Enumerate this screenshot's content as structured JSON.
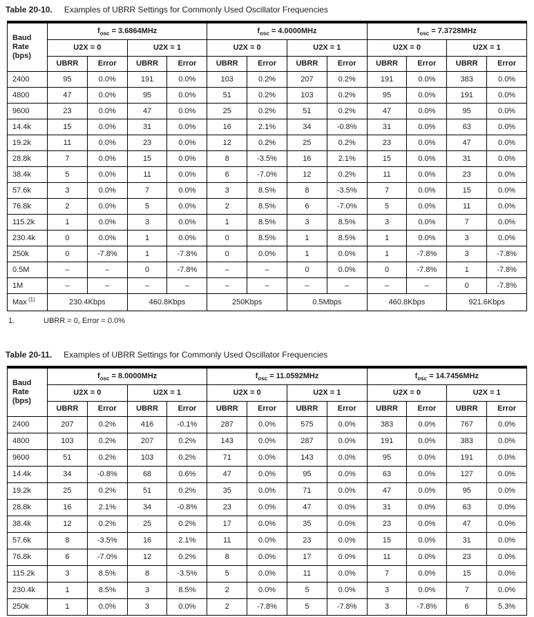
{
  "tables": [
    {
      "title_label": "Table 20-10.",
      "title_text": "Examples of UBRR Settings for Commonly Used Oscillator Frequencies",
      "baud_header": "Baud\nRate\n(bps)",
      "osc_groups": [
        {
          "prefix": "f",
          "subscript": "osc",
          "suffix": " = 3.6864MHz"
        },
        {
          "prefix": "f",
          "subscript": "osc",
          "suffix": " = 4.0000MHz"
        },
        {
          "prefix": "f",
          "subscript": "osc",
          "suffix": " = 7.3728MHz"
        }
      ],
      "u2x_labels": [
        "U2X = 0",
        "U2X = 1"
      ],
      "col_headers": [
        "UBRR",
        "Error"
      ],
      "rows": [
        {
          "baud": "2400",
          "cells": [
            "95",
            "0.0%",
            "191",
            "0.0%",
            "103",
            "0.2%",
            "207",
            "0.2%",
            "191",
            "0.0%",
            "383",
            "0.0%"
          ]
        },
        {
          "baud": "4800",
          "cells": [
            "47",
            "0.0%",
            "95",
            "0.0%",
            "51",
            "0.2%",
            "103",
            "0.2%",
            "95",
            "0.0%",
            "191",
            "0.0%"
          ]
        },
        {
          "baud": "9600",
          "cells": [
            "23",
            "0.0%",
            "47",
            "0.0%",
            "25",
            "0.2%",
            "51",
            "0.2%",
            "47",
            "0.0%",
            "95",
            "0.0%"
          ]
        },
        {
          "baud": "14.4k",
          "cells": [
            "15",
            "0.0%",
            "31",
            "0.0%",
            "16",
            "2.1%",
            "34",
            "-0.8%",
            "31",
            "0.0%",
            "63",
            "0.0%"
          ]
        },
        {
          "baud": "19.2k",
          "cells": [
            "11",
            "0.0%",
            "23",
            "0.0%",
            "12",
            "0.2%",
            "25",
            "0.2%",
            "23",
            "0.0%",
            "47",
            "0.0%"
          ]
        },
        {
          "baud": "28.8k",
          "cells": [
            "7",
            "0.0%",
            "15",
            "0.0%",
            "8",
            "-3.5%",
            "16",
            "2.1%",
            "15",
            "0.0%",
            "31",
            "0.0%"
          ]
        },
        {
          "baud": "38.4k",
          "cells": [
            "5",
            "0.0%",
            "11",
            "0.0%",
            "6",
            "-7.0%",
            "12",
            "0.2%",
            "11",
            "0.0%",
            "23",
            "0.0%"
          ]
        },
        {
          "baud": "57.6k",
          "cells": [
            "3",
            "0.0%",
            "7",
            "0.0%",
            "3",
            "8.5%",
            "8",
            "-3.5%",
            "7",
            "0.0%",
            "15",
            "0.0%"
          ]
        },
        {
          "baud": "76.8k",
          "cells": [
            "2",
            "0.0%",
            "5",
            "0.0%",
            "2",
            "8.5%",
            "6",
            "-7.0%",
            "5",
            "0.0%",
            "11",
            "0.0%"
          ]
        },
        {
          "baud": "115.2k",
          "cells": [
            "1",
            "0.0%",
            "3",
            "0.0%",
            "1",
            "8.5%",
            "3",
            "8.5%",
            "3",
            "0.0%",
            "7",
            "0.0%"
          ]
        },
        {
          "baud": "230.4k",
          "cells": [
            "0",
            "0.0%",
            "1",
            "0.0%",
            "0",
            "8.5%",
            "1",
            "8.5%",
            "1",
            "0.0%",
            "3",
            "0.0%"
          ]
        },
        {
          "baud": "250k",
          "cells": [
            "0",
            "-7.8%",
            "1",
            "-7.8%",
            "0",
            "0.0%",
            "1",
            "0.0%",
            "1",
            "-7.8%",
            "3",
            "-7.8%"
          ]
        },
        {
          "baud": "0.5M",
          "cells": [
            "–",
            "–",
            "0",
            "-7.8%",
            "–",
            "–",
            "0",
            "0.0%",
            "0",
            "-7.8%",
            "1",
            "-7.8%"
          ]
        },
        {
          "baud": "1M",
          "cells": [
            "–",
            "–",
            "–",
            "–",
            "–",
            "–",
            "–",
            "–",
            "–",
            "–",
            "0",
            "-7.8%"
          ]
        }
      ],
      "max_row": {
        "label": "Max",
        "sup": "(1)",
        "values": [
          "230.4Kbps",
          "460.8Kbps",
          "250Kbps",
          "0.5Mbps",
          "460.8Kbps",
          "921.6Kbps"
        ]
      },
      "footnote": {
        "number": "1.",
        "text": "UBRR = 0, Error = 0.0%"
      }
    },
    {
      "title_label": "Table 20-11.",
      "title_text": "Examples of UBRR Settings for Commonly Used Oscillator Frequencies",
      "baud_header": "Baud\nRate\n(bps)",
      "osc_groups": [
        {
          "prefix": "f",
          "subscript": "osc",
          "suffix": " = 8.0000MHz"
        },
        {
          "prefix": "f",
          "subscript": "osc",
          "suffix": " = 11.0592MHz"
        },
        {
          "prefix": "f",
          "subscript": "osc",
          "suffix": " = 14.7456MHz"
        }
      ],
      "u2x_labels": [
        "U2X = 0",
        "U2X = 1"
      ],
      "col_headers": [
        "UBRR",
        "Error"
      ],
      "rows": [
        {
          "baud": "2400",
          "cells": [
            "207",
            "0.2%",
            "416",
            "-0.1%",
            "287",
            "0.0%",
            "575",
            "0.0%",
            "383",
            "0.0%",
            "767",
            "0.0%"
          ]
        },
        {
          "baud": "4800",
          "cells": [
            "103",
            "0.2%",
            "207",
            "0.2%",
            "143",
            "0.0%",
            "287",
            "0.0%",
            "191",
            "0.0%",
            "383",
            "0.0%"
          ]
        },
        {
          "baud": "9600",
          "cells": [
            "51",
            "0.2%",
            "103",
            "0.2%",
            "71",
            "0.0%",
            "143",
            "0.0%",
            "95",
            "0.0%",
            "191",
            "0.0%"
          ]
        },
        {
          "baud": "14.4k",
          "cells": [
            "34",
            "-0.8%",
            "68",
            "0.6%",
            "47",
            "0.0%",
            "95",
            "0.0%",
            "63",
            "0.0%",
            "127",
            "0.0%"
          ]
        },
        {
          "baud": "19.2k",
          "cells": [
            "25",
            "0.2%",
            "51",
            "0.2%",
            "35",
            "0.0%",
            "71",
            "0.0%",
            "47",
            "0.0%",
            "95",
            "0.0%"
          ]
        },
        {
          "baud": "28.8k",
          "cells": [
            "16",
            "2.1%",
            "34",
            "-0.8%",
            "23",
            "0.0%",
            "47",
            "0.0%",
            "31",
            "0.0%",
            "63",
            "0.0%"
          ]
        },
        {
          "baud": "38.4k",
          "cells": [
            "12",
            "0.2%",
            "25",
            "0.2%",
            "17",
            "0.0%",
            "35",
            "0.0%",
            "23",
            "0.0%",
            "47",
            "0.0%"
          ]
        },
        {
          "baud": "57.6k",
          "cells": [
            "8",
            "-3.5%",
            "16",
            "2.1%",
            "11",
            "0.0%",
            "23",
            "0.0%",
            "15",
            "0.0%",
            "31",
            "0.0%"
          ]
        },
        {
          "baud": "76.8k",
          "cells": [
            "6",
            "-7.0%",
            "12",
            "0.2%",
            "8",
            "0.0%",
            "17",
            "0.0%",
            "11",
            "0.0%",
            "23",
            "0.0%"
          ]
        },
        {
          "baud": "115.2k",
          "cells": [
            "3",
            "8.5%",
            "8",
            "-3.5%",
            "5",
            "0.0%",
            "11",
            "0.0%",
            "7",
            "0.0%",
            "15",
            "0.0%"
          ]
        },
        {
          "baud": "230.4k",
          "cells": [
            "1",
            "8.5%",
            "3",
            "8.5%",
            "2",
            "0.0%",
            "5",
            "0.0%",
            "3",
            "0.0%",
            "7",
            "0.0%"
          ]
        },
        {
          "baud": "250k",
          "cells": [
            "1",
            "0.0%",
            "3",
            "0.0%",
            "2",
            "-7.8%",
            "5",
            "-7.8%",
            "3",
            "-7.8%",
            "6",
            "5.3%"
          ]
        }
      ],
      "max_row": null,
      "footnote": null
    }
  ]
}
